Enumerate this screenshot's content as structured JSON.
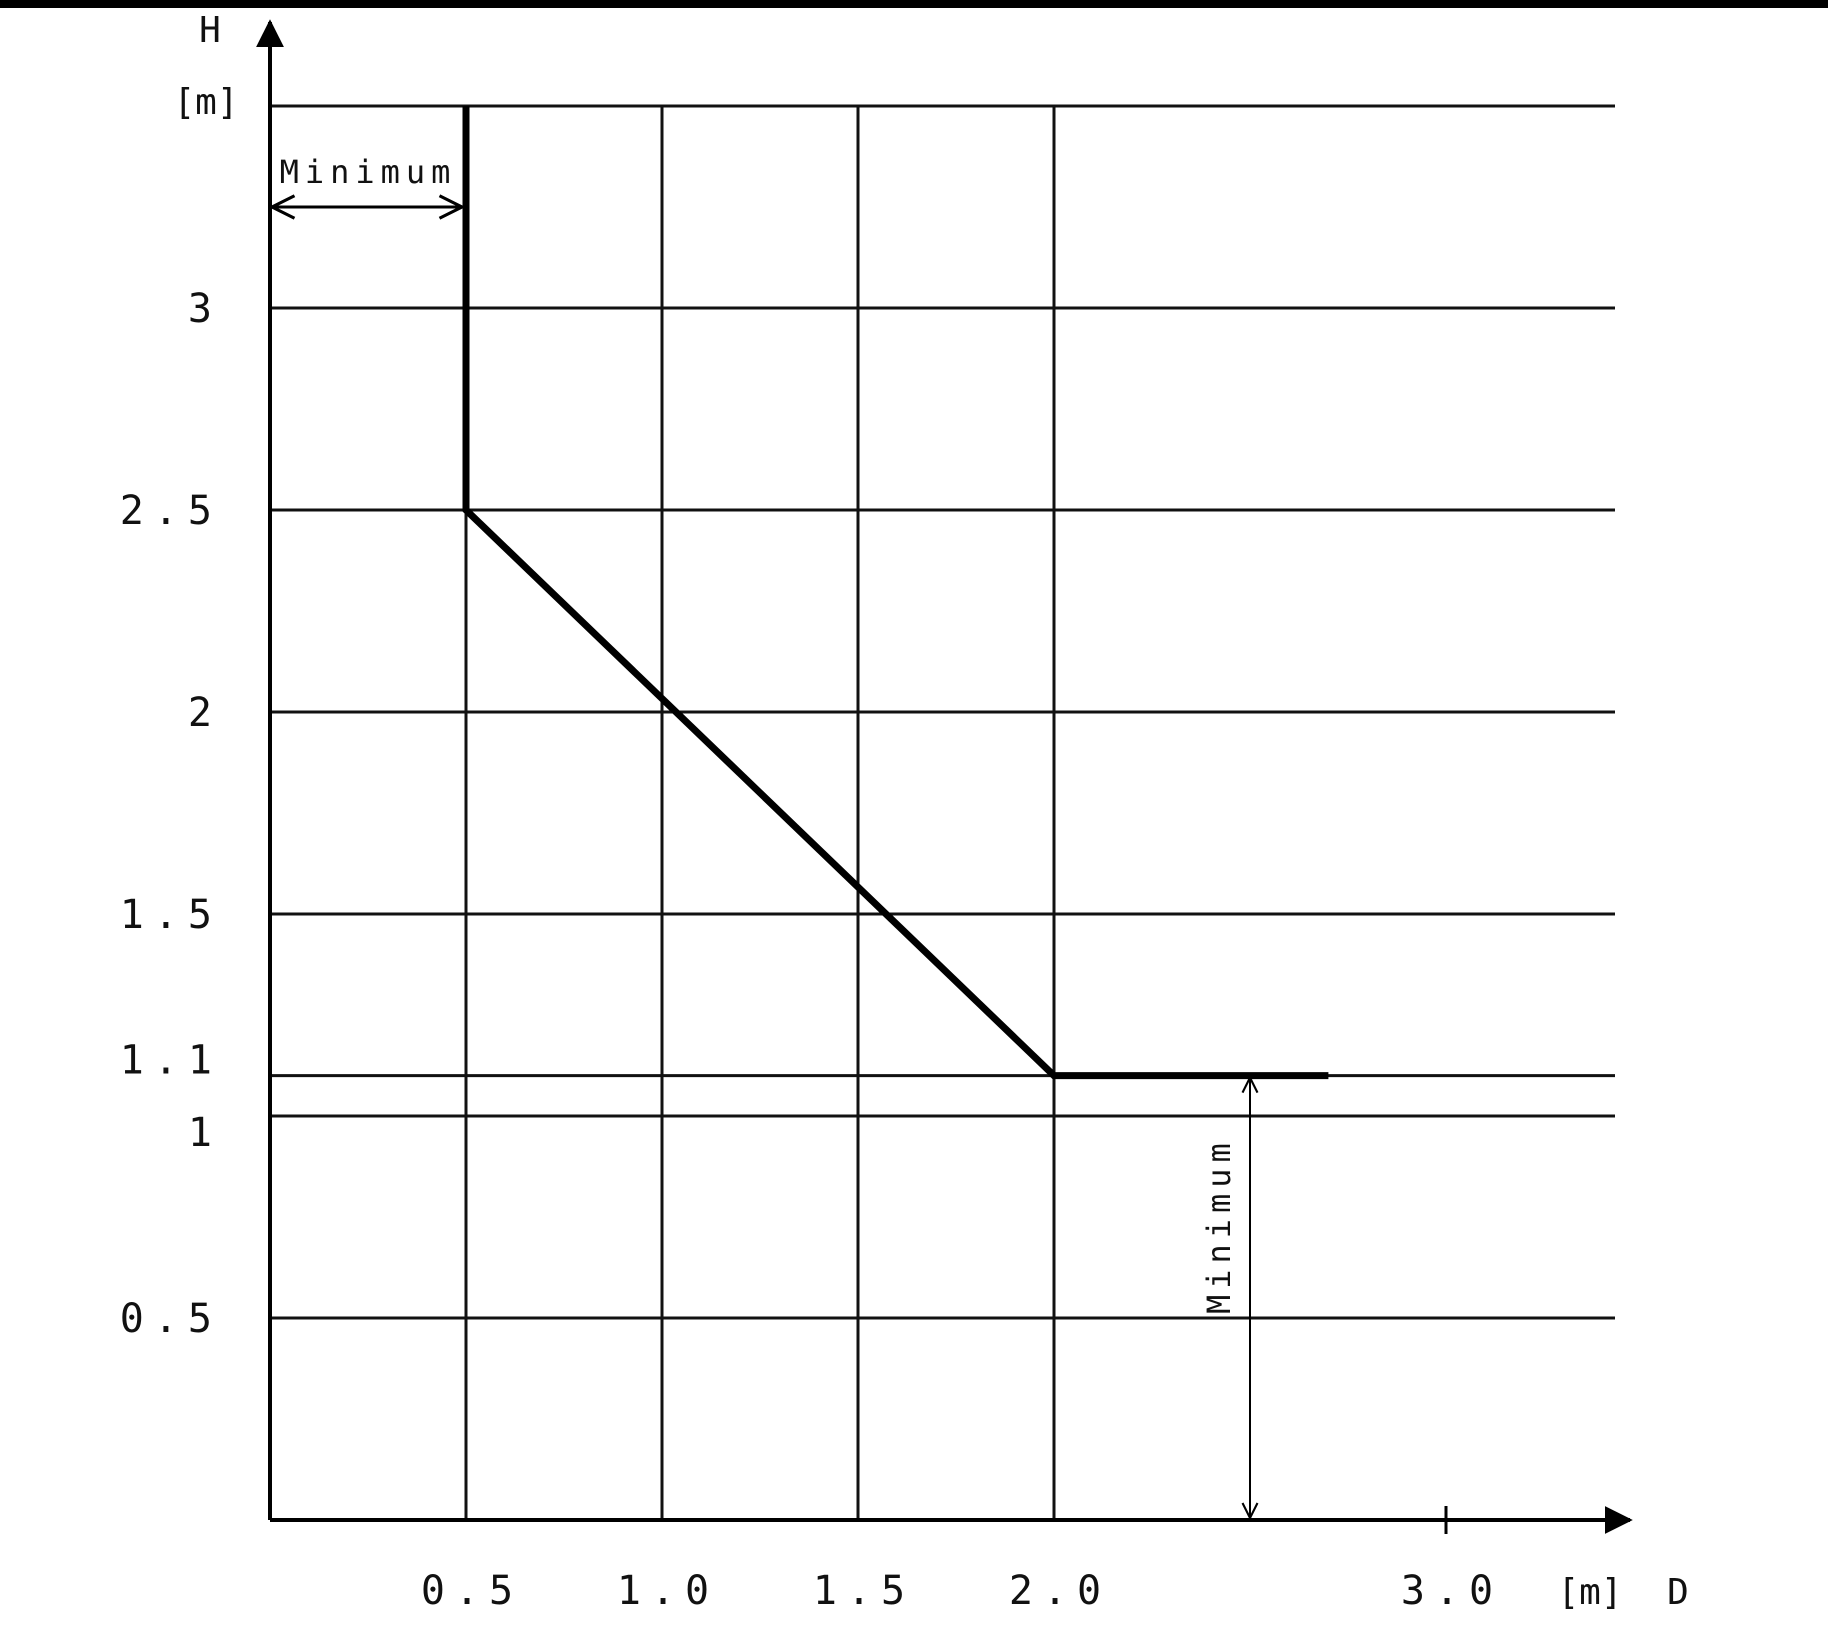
{
  "chart_data": {
    "type": "line",
    "title": "",
    "xlabel": "D",
    "ylabel": "H",
    "x_unit": "[m]",
    "y_unit": "[m]",
    "xlim": [
      0,
      3.5
    ],
    "ylim": [
      0,
      3.5
    ],
    "x_ticks": [
      {
        "value": 0.5,
        "label": "0.5"
      },
      {
        "value": 1.0,
        "label": "1.0"
      },
      {
        "value": 1.5,
        "label": "1.5"
      },
      {
        "value": 2.0,
        "label": "2.0"
      },
      {
        "value": 3.0,
        "label": "3.0"
      }
    ],
    "y_ticks": [
      {
        "value": 0.5,
        "label": "0.5"
      },
      {
        "value": 1.0,
        "label": "1"
      },
      {
        "value": 1.1,
        "label": "1.1"
      },
      {
        "value": 1.5,
        "label": "1.5"
      },
      {
        "value": 2.0,
        "label": "2"
      },
      {
        "value": 2.5,
        "label": "2.5"
      },
      {
        "value": 3.0,
        "label": "3"
      }
    ],
    "grid": true,
    "vertical_gridlines": [
      0.5,
      1.0,
      1.5,
      2.0
    ],
    "horizontal_gridlines": [
      0.5,
      1.0,
      1.1,
      1.5,
      2.0,
      2.5,
      3.0,
      3.5
    ],
    "series": [
      {
        "x": [
          0.5,
          0.5,
          2.0,
          2.7
        ],
        "y": [
          3.5,
          2.5,
          1.1,
          1.1
        ],
        "color": "#000000"
      }
    ],
    "annotations": [
      {
        "text": "Minimum",
        "kind": "horizontal-dimension",
        "from": 0,
        "to": 0.5,
        "at": 3.25
      },
      {
        "text": "Minimum",
        "kind": "vertical-dimension",
        "from": 0,
        "to": 1.1,
        "at": 2.5
      }
    ]
  }
}
